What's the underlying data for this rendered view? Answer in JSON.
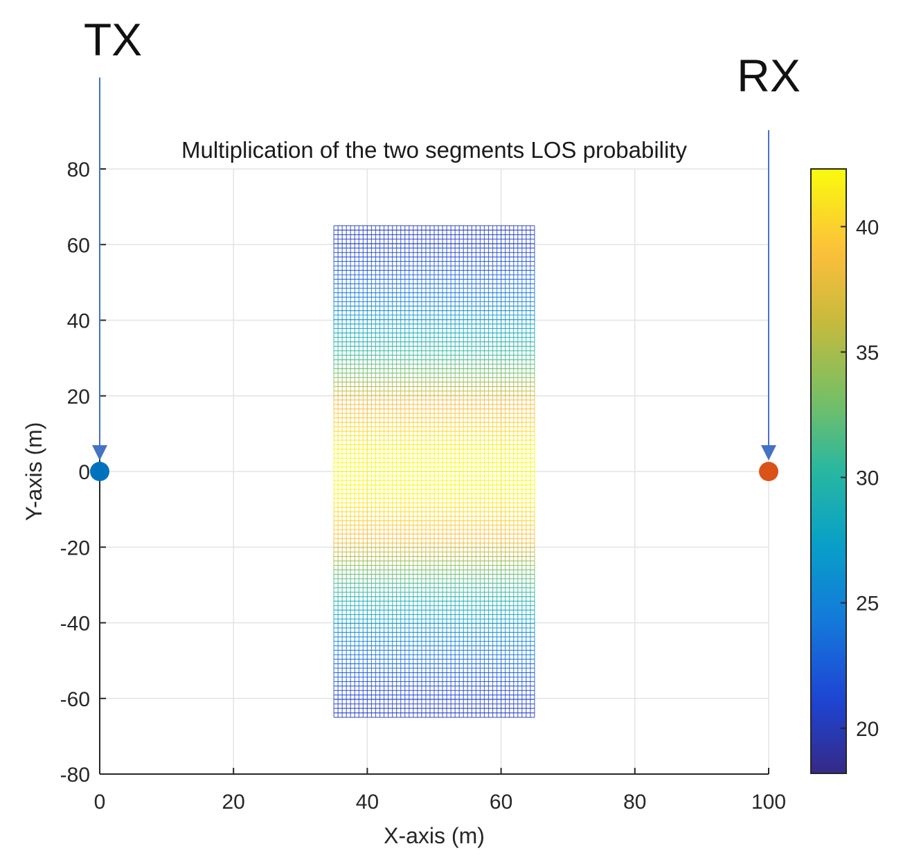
{
  "chart_data": {
    "type": "heatmap",
    "title": "Multiplication of the two segments LOS probability",
    "xlabel": "X-axis (m)",
    "ylabel": "Y-axis (m)",
    "xlim": [
      0,
      100
    ],
    "ylim": [
      -80,
      80
    ],
    "xticks": [
      0,
      20,
      40,
      60,
      80,
      100
    ],
    "yticks": [
      -80,
      -60,
      -40,
      -20,
      0,
      20,
      40,
      60,
      80
    ],
    "grid": true,
    "grid_mesh": {
      "x_range": [
        35,
        65
      ],
      "y_range": [
        -65,
        65
      ],
      "x_columns": 48,
      "y_rows": 110,
      "value_profile": {
        "y": [
          -65,
          -57,
          -46,
          -36,
          -26,
          -18,
          -6,
          0,
          6,
          18,
          26,
          36,
          46,
          57,
          65
        ],
        "value": [
          20,
          21.5,
          24.5,
          28.5,
          33,
          38.5,
          42,
          42.5,
          42,
          38.5,
          33,
          28.5,
          24.5,
          21.5,
          20
        ]
      }
    },
    "colorbar": {
      "range": [
        18.2,
        42.3
      ],
      "ticks": [
        20,
        25,
        30,
        35,
        40
      ],
      "colormap": "parula"
    },
    "points": [
      {
        "label": "TX",
        "x": 0,
        "y": 0,
        "color": "#0072BD"
      },
      {
        "label": "RX",
        "x": 100,
        "y": 0,
        "color": "#D95319"
      }
    ],
    "arrows": [
      {
        "x": 0,
        "color": "#4472C4"
      },
      {
        "x": 100,
        "color": "#4472C4"
      }
    ]
  }
}
